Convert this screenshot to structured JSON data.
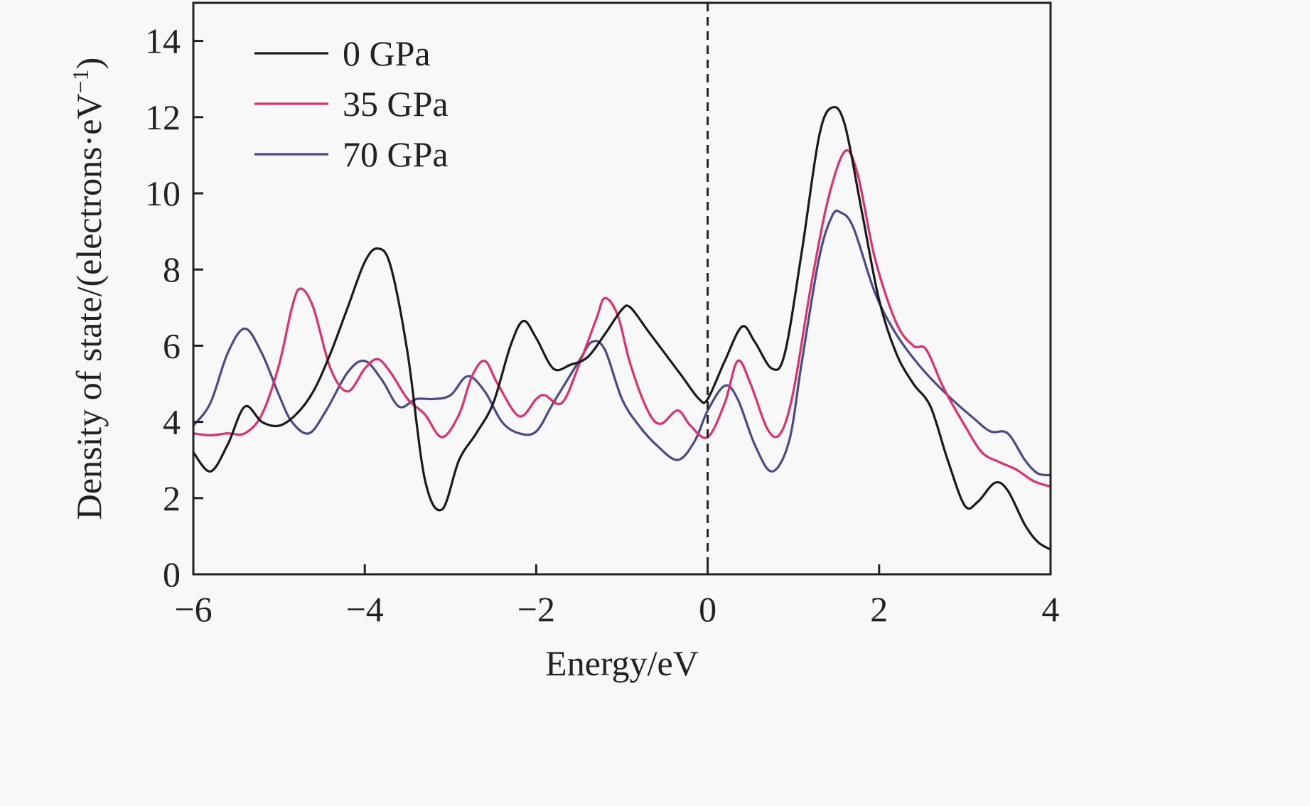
{
  "chart_data": {
    "type": "line",
    "title": "",
    "xlabel": "Energy/eV",
    "ylabel": "Density of state/(electrons·eV",
    "ylabel_sup": "−1",
    "ylabel_close": ")",
    "xlim": [
      -6,
      4
    ],
    "ylim": [
      0,
      15
    ],
    "xticks": [
      -6,
      -4,
      -2,
      0,
      2,
      4
    ],
    "xtick_labels": [
      "−6",
      "−4",
      "−2",
      "0",
      "2",
      "4"
    ],
    "yticks": [
      0,
      2,
      4,
      6,
      8,
      10,
      12,
      14
    ],
    "ytick_labels": [
      "0",
      "2",
      "4",
      "6",
      "8",
      "10",
      "12",
      "14"
    ],
    "grid": false,
    "legend_position": "top-left",
    "reference_line": {
      "x": 0,
      "style": "dashed"
    },
    "series": [
      {
        "name": "0 GPa",
        "color": "#1a1a1a",
        "points": [
          [
            -6.0,
            3.2
          ],
          [
            -5.8,
            2.7
          ],
          [
            -5.6,
            3.4
          ],
          [
            -5.4,
            4.4
          ],
          [
            -5.2,
            4.0
          ],
          [
            -5.0,
            3.9
          ],
          [
            -4.8,
            4.2
          ],
          [
            -4.6,
            4.8
          ],
          [
            -4.4,
            5.8
          ],
          [
            -4.2,
            7.0
          ],
          [
            -4.0,
            8.2
          ],
          [
            -3.85,
            8.55
          ],
          [
            -3.7,
            8.1
          ],
          [
            -3.5,
            5.8
          ],
          [
            -3.3,
            2.5
          ],
          [
            -3.1,
            1.7
          ],
          [
            -2.9,
            3.0
          ],
          [
            -2.7,
            3.7
          ],
          [
            -2.5,
            4.5
          ],
          [
            -2.3,
            6.0
          ],
          [
            -2.15,
            6.65
          ],
          [
            -2.0,
            6.2
          ],
          [
            -1.8,
            5.4
          ],
          [
            -1.6,
            5.5
          ],
          [
            -1.4,
            5.7
          ],
          [
            -1.2,
            6.3
          ],
          [
            -1.0,
            6.95
          ],
          [
            -0.9,
            7.0
          ],
          [
            -0.7,
            6.4
          ],
          [
            -0.5,
            5.8
          ],
          [
            -0.3,
            5.2
          ],
          [
            -0.1,
            4.6
          ],
          [
            0.0,
            4.6
          ],
          [
            0.2,
            5.6
          ],
          [
            0.4,
            6.5
          ],
          [
            0.55,
            6.1
          ],
          [
            0.75,
            5.4
          ],
          [
            0.9,
            5.8
          ],
          [
            1.1,
            8.5
          ],
          [
            1.3,
            11.5
          ],
          [
            1.45,
            12.25
          ],
          [
            1.6,
            11.8
          ],
          [
            1.8,
            9.5
          ],
          [
            2.0,
            7.2
          ],
          [
            2.2,
            5.8
          ],
          [
            2.4,
            5.0
          ],
          [
            2.6,
            4.4
          ],
          [
            2.8,
            3.0
          ],
          [
            3.0,
            1.8
          ],
          [
            3.15,
            1.9
          ],
          [
            3.35,
            2.4
          ],
          [
            3.5,
            2.2
          ],
          [
            3.7,
            1.3
          ],
          [
            3.85,
            0.85
          ],
          [
            4.0,
            0.65
          ]
        ]
      },
      {
        "name": "35 GPa",
        "color": "#e0306a",
        "points": [
          [
            -6.0,
            3.7
          ],
          [
            -5.8,
            3.65
          ],
          [
            -5.6,
            3.7
          ],
          [
            -5.4,
            3.7
          ],
          [
            -5.2,
            4.2
          ],
          [
            -5.0,
            5.5
          ],
          [
            -4.85,
            7.0
          ],
          [
            -4.75,
            7.5
          ],
          [
            -4.6,
            7.0
          ],
          [
            -4.4,
            5.4
          ],
          [
            -4.2,
            4.8
          ],
          [
            -4.0,
            5.4
          ],
          [
            -3.85,
            5.65
          ],
          [
            -3.7,
            5.3
          ],
          [
            -3.5,
            4.6
          ],
          [
            -3.3,
            4.2
          ],
          [
            -3.1,
            3.6
          ],
          [
            -2.9,
            4.2
          ],
          [
            -2.75,
            5.2
          ],
          [
            -2.6,
            5.6
          ],
          [
            -2.45,
            5.0
          ],
          [
            -2.2,
            4.15
          ],
          [
            -2.0,
            4.6
          ],
          [
            -1.9,
            4.7
          ],
          [
            -1.7,
            4.5
          ],
          [
            -1.5,
            5.5
          ],
          [
            -1.3,
            6.7
          ],
          [
            -1.2,
            7.25
          ],
          [
            -1.05,
            6.8
          ],
          [
            -0.9,
            5.5
          ],
          [
            -0.7,
            4.3
          ],
          [
            -0.55,
            3.95
          ],
          [
            -0.35,
            4.3
          ],
          [
            -0.2,
            3.9
          ],
          [
            0.0,
            3.6
          ],
          [
            0.2,
            4.5
          ],
          [
            0.35,
            5.6
          ],
          [
            0.5,
            5.0
          ],
          [
            0.7,
            3.8
          ],
          [
            0.85,
            3.7
          ],
          [
            1.0,
            4.8
          ],
          [
            1.2,
            7.5
          ],
          [
            1.4,
            9.8
          ],
          [
            1.6,
            11.1
          ],
          [
            1.75,
            10.5
          ],
          [
            1.95,
            8.3
          ],
          [
            2.2,
            6.6
          ],
          [
            2.4,
            6.0
          ],
          [
            2.55,
            5.9
          ],
          [
            2.75,
            4.9
          ],
          [
            3.0,
            3.9
          ],
          [
            3.2,
            3.2
          ],
          [
            3.4,
            2.95
          ],
          [
            3.6,
            2.75
          ],
          [
            3.8,
            2.45
          ],
          [
            4.0,
            2.3
          ]
        ]
      },
      {
        "name": "70 GPa",
        "color": "#4a4a8a",
        "points": [
          [
            -6.0,
            3.9
          ],
          [
            -5.8,
            4.5
          ],
          [
            -5.6,
            5.8
          ],
          [
            -5.4,
            6.45
          ],
          [
            -5.2,
            5.8
          ],
          [
            -5.0,
            4.7
          ],
          [
            -4.85,
            4.0
          ],
          [
            -4.65,
            3.7
          ],
          [
            -4.45,
            4.3
          ],
          [
            -4.2,
            5.3
          ],
          [
            -4.0,
            5.6
          ],
          [
            -3.8,
            5.1
          ],
          [
            -3.6,
            4.4
          ],
          [
            -3.4,
            4.6
          ],
          [
            -3.2,
            4.6
          ],
          [
            -3.0,
            4.7
          ],
          [
            -2.8,
            5.2
          ],
          [
            -2.6,
            4.8
          ],
          [
            -2.4,
            4.0
          ],
          [
            -2.2,
            3.7
          ],
          [
            -2.0,
            3.75
          ],
          [
            -1.8,
            4.5
          ],
          [
            -1.5,
            5.6
          ],
          [
            -1.35,
            6.1
          ],
          [
            -1.2,
            5.9
          ],
          [
            -1.0,
            4.6
          ],
          [
            -0.8,
            3.9
          ],
          [
            -0.6,
            3.4
          ],
          [
            -0.35,
            3.0
          ],
          [
            -0.15,
            3.5
          ],
          [
            0.0,
            4.3
          ],
          [
            0.2,
            4.95
          ],
          [
            0.35,
            4.6
          ],
          [
            0.55,
            3.4
          ],
          [
            0.75,
            2.7
          ],
          [
            0.95,
            3.5
          ],
          [
            1.1,
            5.6
          ],
          [
            1.3,
            8.3
          ],
          [
            1.45,
            9.4
          ],
          [
            1.55,
            9.5
          ],
          [
            1.7,
            9.1
          ],
          [
            1.95,
            7.4
          ],
          [
            2.2,
            6.3
          ],
          [
            2.5,
            5.4
          ],
          [
            2.8,
            4.7
          ],
          [
            3.1,
            4.1
          ],
          [
            3.3,
            3.75
          ],
          [
            3.5,
            3.7
          ],
          [
            3.7,
            3.0
          ],
          [
            3.85,
            2.65
          ],
          [
            4.0,
            2.6
          ]
        ]
      }
    ]
  }
}
